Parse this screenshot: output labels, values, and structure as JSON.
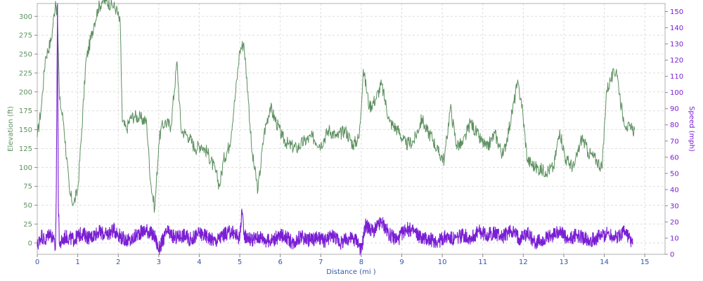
{
  "chart_data": {
    "type": "line",
    "title": "",
    "xlabel": "Distance (mi )",
    "ylabel_left": "Elevation (ft)",
    "ylabel_right": "Speed (mph)",
    "xlim": [
      0,
      15.5
    ],
    "ylim_left": [
      -15,
      317
    ],
    "ylim_right": [
      0,
      155
    ],
    "x_ticks": [
      "0",
      "1",
      "2",
      "3",
      "4",
      "5",
      "6",
      "7",
      "8",
      "9",
      "10",
      "11",
      "12",
      "13",
      "14",
      "15"
    ],
    "y_left_ticks": [
      "0",
      "25",
      "50",
      "75",
      "100",
      "125",
      "150",
      "175",
      "200",
      "225",
      "250",
      "275",
      "300"
    ],
    "y_right_ticks": [
      "0",
      "10",
      "20",
      "30",
      "40",
      "50",
      "60",
      "70",
      "80",
      "90",
      "100",
      "110",
      "120",
      "130",
      "140",
      "150"
    ],
    "grid": true,
    "colors": {
      "elevation": "#5d9060",
      "speed": "#7a1ed4",
      "axis_left_text": "#5d9060",
      "axis_right_text": "#7a1ed4",
      "x_axis_text": "#3355aa",
      "grid": "#dddddd",
      "frame": "#b0b0b0"
    },
    "series": [
      {
        "name": "Elevation (ft)",
        "axis": "left",
        "x": [
          0,
          0.1,
          0.2,
          0.35,
          0.45,
          0.5,
          0.55,
          0.65,
          0.8,
          0.9,
          1.0,
          1.1,
          1.2,
          1.4,
          1.5,
          1.6,
          1.7,
          1.85,
          1.95,
          2.05,
          2.1,
          2.2,
          2.3,
          2.4,
          2.55,
          2.7,
          2.8,
          2.9,
          3.0,
          3.05,
          3.15,
          3.3,
          3.45,
          3.55,
          3.65,
          3.75,
          3.9,
          4.05,
          4.2,
          4.4,
          4.5,
          4.6,
          4.75,
          4.9,
          5.0,
          5.1,
          5.2,
          5.3,
          5.45,
          5.6,
          5.75,
          5.9,
          6.05,
          6.2,
          6.4,
          6.6,
          6.8,
          7.0,
          7.2,
          7.4,
          7.6,
          7.8,
          7.95,
          8.05,
          8.2,
          8.35,
          8.5,
          8.7,
          8.9,
          9.1,
          9.3,
          9.5,
          9.6,
          9.75,
          9.9,
          10.05,
          10.2,
          10.35,
          10.5,
          10.7,
          10.9,
          11.1,
          11.3,
          11.5,
          11.7,
          11.85,
          11.95,
          12.1,
          12.3,
          12.55,
          12.75,
          12.9,
          13.05,
          13.25,
          13.45,
          13.6,
          13.8,
          13.95,
          14.05,
          14.15,
          14.3,
          14.45,
          14.55,
          14.65,
          14.75
        ],
        "values": [
          140,
          180,
          245,
          270,
          320,
          300,
          190,
          160,
          65,
          52,
          70,
          150,
          240,
          290,
          310,
          320,
          320,
          315,
          310,
          290,
          160,
          150,
          165,
          168,
          165,
          160,
          80,
          45,
          130,
          150,
          160,
          155,
          240,
          150,
          145,
          140,
          125,
          130,
          120,
          95,
          75,
          110,
          130,
          200,
          255,
          265,
          200,
          120,
          70,
          145,
          180,
          160,
          140,
          130,
          125,
          135,
          140,
          130,
          150,
          140,
          150,
          130,
          140,
          230,
          180,
          190,
          210,
          160,
          150,
          130,
          135,
          165,
          150,
          140,
          120,
          110,
          180,
          130,
          130,
          160,
          140,
          125,
          145,
          115,
          165,
          210,
          190,
          110,
          100,
          95,
          100,
          150,
          110,
          100,
          140,
          120,
          110,
          100,
          200,
          215,
          230,
          170,
          155,
          150,
          150
        ]
      },
      {
        "name": "Speed (mph)",
        "axis": "right",
        "x": [
          0,
          0.1,
          0.2,
          0.3,
          0.4,
          0.45,
          0.47,
          0.5,
          0.52,
          0.55,
          0.7,
          0.9,
          1.1,
          1.3,
          1.5,
          1.7,
          1.9,
          2.1,
          2.3,
          2.5,
          2.7,
          2.9,
          3.0,
          3.2,
          3.4,
          3.6,
          3.8,
          4.0,
          4.2,
          4.4,
          4.6,
          4.8,
          5.0,
          5.05,
          5.1,
          5.3,
          5.5,
          5.7,
          5.9,
          6.1,
          6.3,
          6.5,
          6.7,
          6.9,
          7.1,
          7.3,
          7.5,
          7.7,
          7.9,
          8.0,
          8.1,
          8.3,
          8.5,
          8.7,
          8.9,
          9.1,
          9.3,
          9.5,
          9.7,
          9.9,
          10.1,
          10.3,
          10.5,
          10.7,
          10.9,
          11.1,
          11.3,
          11.5,
          11.7,
          11.9,
          12.1,
          12.3,
          12.5,
          12.7,
          12.9,
          13.1,
          13.3,
          13.5,
          13.7,
          13.9,
          14.1,
          14.3,
          14.5,
          14.7
        ],
        "values": [
          5,
          12,
          8,
          14,
          9,
          3,
          40,
          155,
          30,
          6,
          11,
          9,
          13,
          10,
          14,
          12,
          15,
          10,
          8,
          13,
          15,
          11,
          3,
          14,
          10,
          12,
          9,
          13,
          11,
          8,
          12,
          14,
          10,
          28,
          12,
          9,
          11,
          8,
          10,
          12,
          7,
          11,
          9,
          10,
          8,
          12,
          7,
          10,
          9,
          2,
          18,
          14,
          20,
          12,
          9,
          16,
          14,
          10,
          9,
          8,
          11,
          9,
          12,
          10,
          14,
          12,
          13,
          11,
          15,
          10,
          13,
          7,
          9,
          11,
          15,
          8,
          12,
          10,
          9,
          11,
          13,
          10,
          15,
          6
        ]
      }
    ]
  }
}
